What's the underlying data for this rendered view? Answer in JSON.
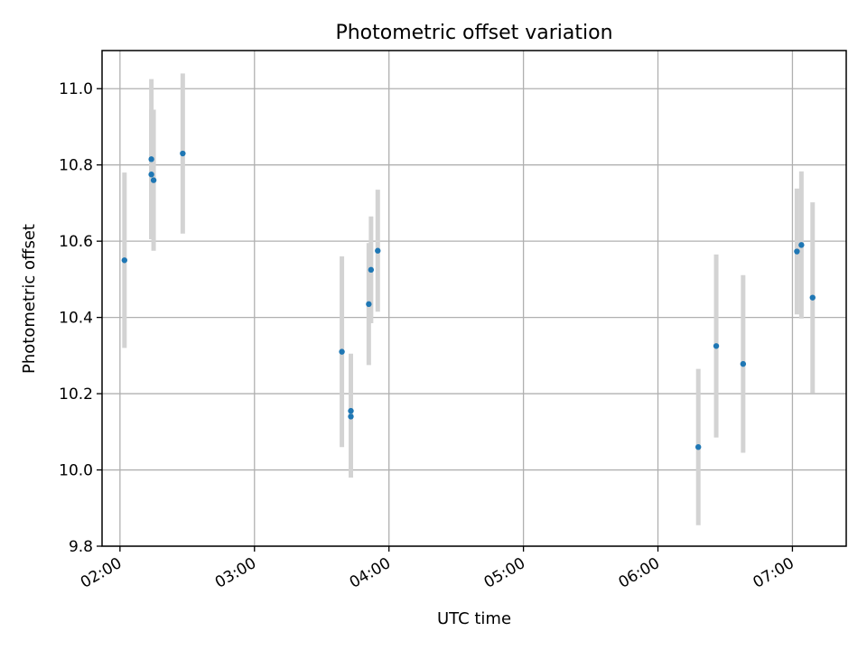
{
  "chart_data": {
    "type": "scatter",
    "title": "Photometric offset variation",
    "xlabel": "UTC time",
    "ylabel": "Photometric offset",
    "x_axis_type": "time",
    "xlim": [
      "01:52",
      "07:24"
    ],
    "ylim": [
      9.8,
      11.1
    ],
    "xticks": [
      "02:00",
      "03:00",
      "04:00",
      "05:00",
      "06:00",
      "07:00"
    ],
    "yticks": [
      9.8,
      10.0,
      10.2,
      10.4,
      10.6,
      10.8,
      11.0
    ],
    "ytick_labels": [
      "9.8",
      "10.0",
      "10.2",
      "10.4",
      "10.6",
      "10.8",
      "11.0"
    ],
    "grid": true,
    "legend": "none",
    "marker_color": "#1f77b4",
    "errorbar_color": "#d3d3d3",
    "points": [
      {
        "x": "02:02",
        "y": 10.55,
        "yerr": 0.23
      },
      {
        "x": "02:14",
        "y": 10.815,
        "yerr": 0.21
      },
      {
        "x": "02:14",
        "y": 10.775,
        "yerr": 0.17
      },
      {
        "x": "02:15",
        "y": 10.76,
        "yerr": 0.185
      },
      {
        "x": "02:28",
        "y": 10.83,
        "yerr": 0.21
      },
      {
        "x": "03:39",
        "y": 10.31,
        "yerr": 0.25
      },
      {
        "x": "03:43",
        "y": 10.155,
        "yerr": 0.15
      },
      {
        "x": "03:43",
        "y": 10.14,
        "yerr": 0.16
      },
      {
        "x": "03:51",
        "y": 10.435,
        "yerr": 0.16
      },
      {
        "x": "03:52",
        "y": 10.525,
        "yerr": 0.14
      },
      {
        "x": "03:55",
        "y": 10.575,
        "yerr": 0.16
      },
      {
        "x": "06:18",
        "y": 10.06,
        "yerr": 0.205
      },
      {
        "x": "06:26",
        "y": 10.325,
        "yerr": 0.24
      },
      {
        "x": "06:38",
        "y": 10.278,
        "yerr": 0.233
      },
      {
        "x": "07:02",
        "y": 10.573,
        "yerr": 0.165
      },
      {
        "x": "07:04",
        "y": 10.59,
        "yerr": 0.193
      },
      {
        "x": "07:09",
        "y": 10.452,
        "yerr": 0.25
      }
    ]
  }
}
